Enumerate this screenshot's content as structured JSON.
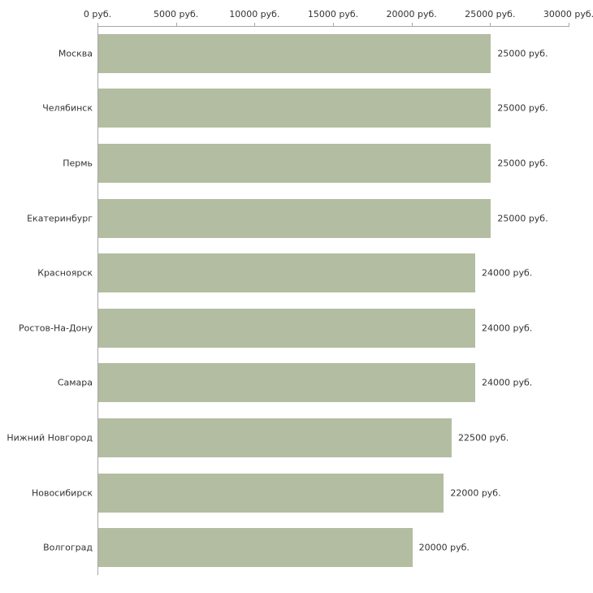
{
  "chart_data": {
    "type": "bar",
    "orientation": "horizontal",
    "title": "",
    "xlabel": "",
    "ylabel": "",
    "categories": [
      "Москва",
      "Челябинск",
      "Пермь",
      "Екатеринбург",
      "Красноярск",
      "Ростов-На-Дону",
      "Самара",
      "Нижний Новгород",
      "Новосибирск",
      "Волгоград"
    ],
    "values": [
      25000,
      25000,
      25000,
      25000,
      24000,
      24000,
      24000,
      22500,
      22000,
      20000
    ],
    "value_labels": [
      "25000 руб.",
      "25000 руб.",
      "25000 руб.",
      "25000 руб.",
      "24000 руб.",
      "24000 руб.",
      "24000 руб.",
      "22500 руб.",
      "22000 руб.",
      "20000 руб."
    ],
    "xlim": [
      0,
      30000
    ],
    "x_ticks": [
      0,
      5000,
      10000,
      15000,
      20000,
      25000,
      30000
    ],
    "x_tick_labels": [
      "0 руб.",
      "5000 руб.",
      "10000 руб.",
      "15000 руб.",
      "20000 руб.",
      "25000 руб.",
      "30000 руб."
    ],
    "legend": null,
    "grid": false,
    "bar_color": "#b3bda1",
    "axis_color": "#a6a6a6",
    "text_color": "#333333",
    "background_color": "#ffffff"
  }
}
